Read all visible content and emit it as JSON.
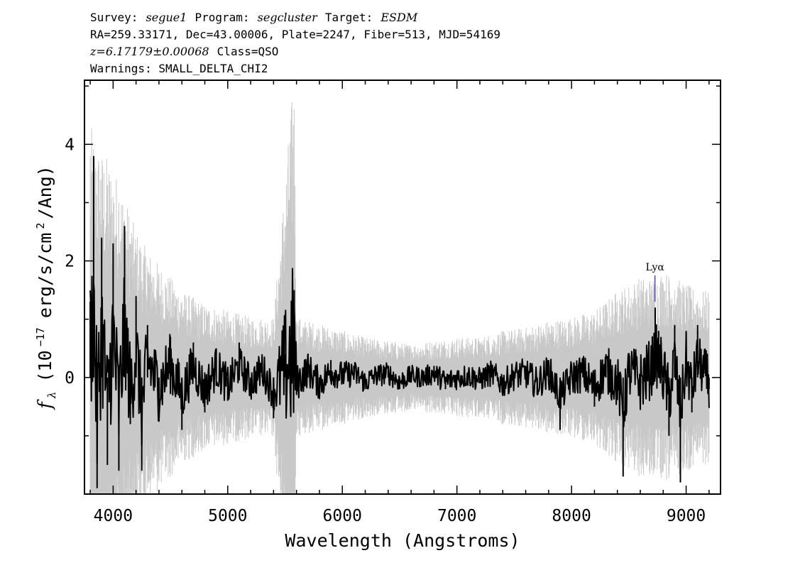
{
  "header": {
    "survey_label": "Survey:",
    "survey": "segue1",
    "program_label": "Program:",
    "program": "segcluster",
    "target_label": "Target:",
    "target": "ESDM",
    "line2": "RA=259.33171, Dec=43.00006, Plate=2247, Fiber=513, MJD=54169",
    "redshift": "z=6.17179±0.00068",
    "class_text": "Class=QSO",
    "warnings": "Warnings: SMALL_DELTA_CHI2"
  },
  "chart_data": {
    "type": "line",
    "xlabel": "Wavelength (Angstroms)",
    "ylabel_symbol": "f",
    "ylabel_subscript": "λ",
    "ylabel_prefix": "(10",
    "ylabel_exp": "−17",
    "ylabel_mid": "erg/s/cm",
    "ylabel_exp2": "2",
    "ylabel_suffix": "/Ang)",
    "xlim": [
      3750,
      9300
    ],
    "ylim": [
      -2,
      5.1
    ],
    "xticks": [
      4000,
      5000,
      6000,
      7000,
      8000,
      9000
    ],
    "yticks": [
      0,
      2,
      4
    ],
    "xtick_labels": [
      "4000",
      "5000",
      "6000",
      "7000",
      "8000",
      "9000"
    ],
    "ytick_labels": [
      "0",
      "2",
      "4"
    ],
    "grid": false,
    "series": [
      {
        "role": "error",
        "color": "#c8c8c8",
        "x": [
          3800,
          3850,
          3900,
          3950,
          4000,
          4050,
          4100,
          4200,
          4300,
          4400,
          4500,
          4600,
          4800,
          5000,
          5200,
          5400,
          5580,
          5600,
          5800,
          6000,
          6200,
          6400,
          6600,
          6800,
          7000,
          7200,
          7400,
          7600,
          7800,
          8000,
          8200,
          8400,
          8500,
          8600,
          8700,
          8800,
          8900,
          9000,
          9100,
          9200
        ],
        "values": [
          3.8,
          3.5,
          3.4,
          3.3,
          3.1,
          3.0,
          2.7,
          2.2,
          1.9,
          1.7,
          1.5,
          1.3,
          1.1,
          1.0,
          0.9,
          0.9,
          4.6,
          0.9,
          0.8,
          0.7,
          0.6,
          0.55,
          0.5,
          0.55,
          0.6,
          0.6,
          0.7,
          0.75,
          0.85,
          0.9,
          1.0,
          1.3,
          1.4,
          1.5,
          1.5,
          1.6,
          1.5,
          1.4,
          1.3,
          1.3
        ]
      },
      {
        "role": "flux",
        "color": "#000000",
        "x": [
          3800,
          3830,
          3860,
          3900,
          3950,
          4000,
          4050,
          4100,
          4150,
          4200,
          4250,
          4300,
          4400,
          4500,
          4600,
          4700,
          4800,
          4900,
          5000,
          5100,
          5200,
          5300,
          5400,
          5500,
          5580,
          5600,
          5700,
          5800,
          5900,
          6000,
          6100,
          6200,
          6300,
          6400,
          6500,
          6600,
          6700,
          6800,
          6900,
          7000,
          7100,
          7200,
          7300,
          7400,
          7500,
          7600,
          7700,
          7800,
          7900,
          8000,
          8100,
          8200,
          8300,
          8400,
          8450,
          8500,
          8600,
          8700,
          8730,
          8760,
          8800,
          8850,
          8900,
          8950,
          9000,
          9050,
          9100,
          9150,
          9200
        ],
        "values": [
          1.3,
          3.8,
          -1.9,
          2.4,
          -1.5,
          2.3,
          -1.6,
          2.6,
          -0.8,
          1.4,
          -1.6,
          0.9,
          -0.5,
          0.7,
          -0.9,
          0.6,
          -0.6,
          0.5,
          -0.4,
          0.6,
          -0.3,
          0.4,
          -0.7,
          0.4,
          1.5,
          -0.3,
          0.4,
          -0.3,
          0.3,
          0.1,
          0.2,
          -0.2,
          0.1,
          0.2,
          -0.2,
          0.1,
          0.0,
          0.2,
          -0.2,
          0.0,
          0.1,
          -0.1,
          0.2,
          -0.3,
          0.1,
          0.2,
          -0.3,
          0.3,
          -0.9,
          0.0,
          0.2,
          -0.5,
          0.4,
          -0.2,
          -1.7,
          0.3,
          -0.2,
          0.5,
          1.2,
          0.8,
          0.2,
          -1.0,
          0.9,
          -1.8,
          0.8,
          -0.6,
          0.9,
          0.3,
          -0.2
        ]
      }
    ],
    "annotations": [
      {
        "text": "Lyα",
        "x": 8728,
        "y_top": 1.75,
        "y_bottom": 1.3,
        "color": "#2222cc"
      }
    ]
  }
}
